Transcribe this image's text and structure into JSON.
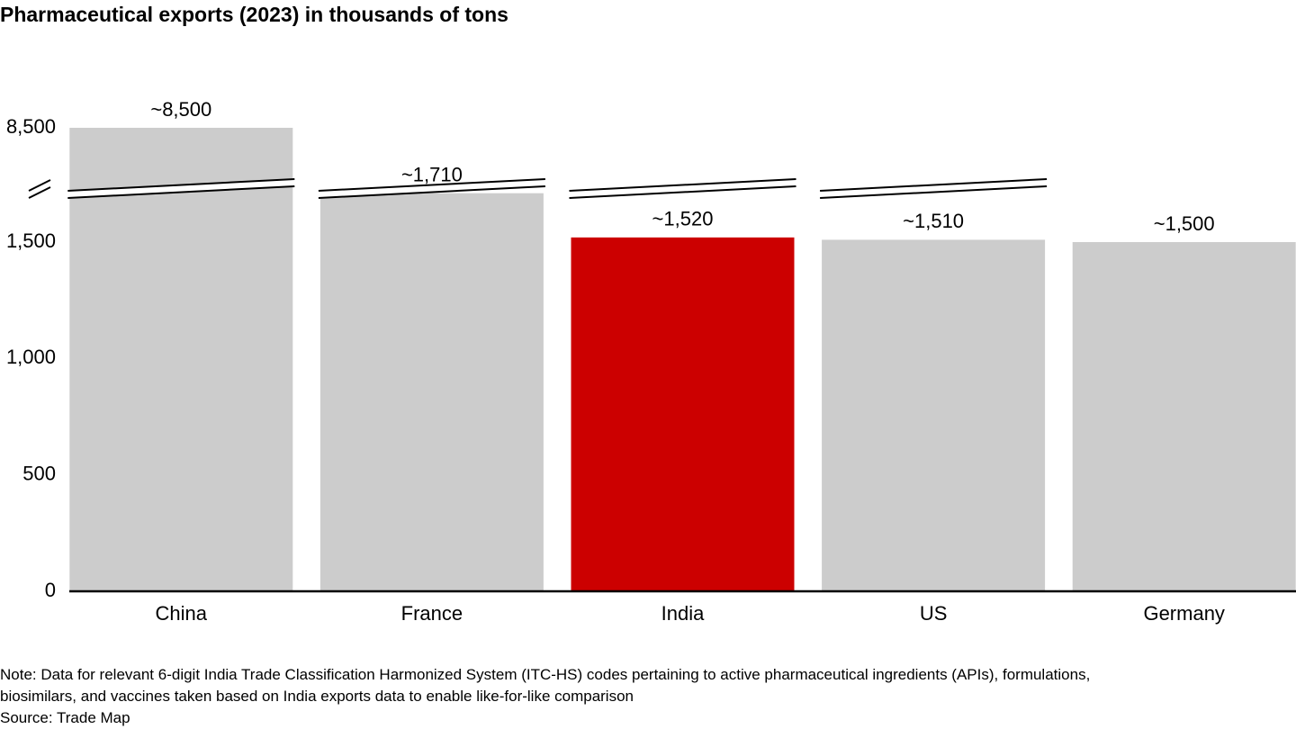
{
  "chart_data": {
    "type": "bar",
    "title": "Pharmaceutical exports (2023) in thousands of tons",
    "categories": [
      "China",
      "France",
      "India",
      "US",
      "Germany"
    ],
    "values": [
      8500,
      1710,
      1520,
      1510,
      1500
    ],
    "value_labels": [
      "~8,500",
      "~1,710",
      "~1,520",
      "~1,510",
      "~1,500"
    ],
    "colors": [
      "#cccccc",
      "#cccccc",
      "#cc0000",
      "#cccccc",
      "#cccccc"
    ],
    "ylim": [
      0,
      8500
    ],
    "yticks": [
      0,
      500,
      {
        "value": 1000,
        "label": "1,000"
      },
      {
        "value": 1500,
        "label": "1,500"
      },
      {
        "value": 8500,
        "label": "8,500"
      }
    ],
    "axis_break": true,
    "note": "Note: Data for relevant 6-digit India Trade Classification Harmonized System (ITC-HS) codes pertaining to active pharmaceutical ingredients (APIs), formulations,",
    "note_line2": "biosimilars, and vaccines taken based on India exports data to enable like-for-like comparison",
    "source": "Source: Trade Map"
  }
}
